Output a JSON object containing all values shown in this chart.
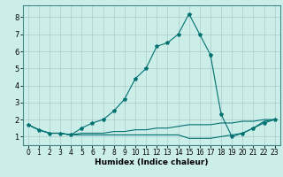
{
  "xlabel": "Humidex (Indice chaleur)",
  "bg_color": "#cceee8",
  "grid_color": "#aacccc",
  "line_color": "#007070",
  "x_ticks": [
    0,
    1,
    2,
    3,
    4,
    5,
    6,
    7,
    8,
    9,
    10,
    11,
    12,
    13,
    14,
    15,
    16,
    17,
    18,
    19,
    20,
    21,
    22,
    23
  ],
  "y_ticks": [
    1,
    2,
    3,
    4,
    5,
    6,
    7,
    8
  ],
  "xlim": [
    -0.5,
    23.5
  ],
  "ylim": [
    0.5,
    8.7
  ],
  "line1_x": [
    0,
    1,
    2,
    3,
    4,
    5,
    6,
    7,
    8,
    9,
    10,
    11,
    12,
    13,
    14,
    15,
    16,
    17,
    18,
    19,
    20,
    21,
    22,
    23
  ],
  "line1_y": [
    1.7,
    1.4,
    1.2,
    1.2,
    1.1,
    1.5,
    1.8,
    2.0,
    2.5,
    3.2,
    4.4,
    5.0,
    6.3,
    6.5,
    7.0,
    8.2,
    7.0,
    5.8,
    2.3,
    1.0,
    1.2,
    1.5,
    1.8,
    2.0
  ],
  "line2_x": [
    0,
    1,
    2,
    3,
    4,
    5,
    6,
    7,
    8,
    9,
    10,
    11,
    12,
    13,
    14,
    15,
    16,
    17,
    18,
    19,
    20,
    21,
    22,
    23
  ],
  "line2_y": [
    1.7,
    1.4,
    1.2,
    1.2,
    1.1,
    1.2,
    1.2,
    1.2,
    1.3,
    1.3,
    1.4,
    1.4,
    1.5,
    1.5,
    1.6,
    1.7,
    1.7,
    1.7,
    1.8,
    1.8,
    1.9,
    1.9,
    2.0,
    2.0
  ],
  "line3_x": [
    0,
    1,
    2,
    3,
    4,
    5,
    6,
    7,
    8,
    9,
    10,
    11,
    12,
    13,
    14,
    15,
    16,
    17,
    18,
    19,
    20,
    21,
    22,
    23
  ],
  "line3_y": [
    1.7,
    1.4,
    1.2,
    1.2,
    1.1,
    1.1,
    1.1,
    1.1,
    1.1,
    1.1,
    1.1,
    1.1,
    1.1,
    1.1,
    1.1,
    0.9,
    0.9,
    0.9,
    1.0,
    1.1,
    1.2,
    1.5,
    1.9,
    2.0
  ]
}
